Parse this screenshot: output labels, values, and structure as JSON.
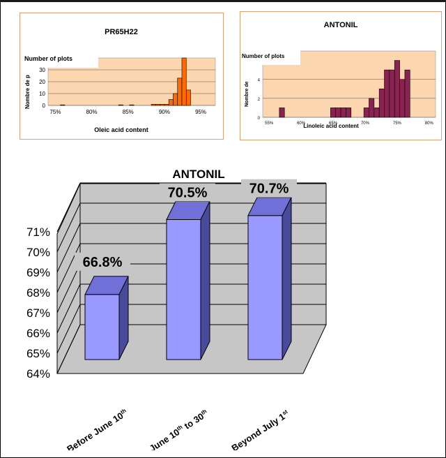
{
  "chart_data": [
    {
      "type": "bar",
      "title": "PR65H22",
      "xlabel": "Oleic acid content",
      "ylabel": "Nombre de p",
      "overlay_label": "Number of plots",
      "x_ticks": [
        "75%",
        "80%",
        "85%",
        "90%",
        "95%"
      ],
      "y_ticks": [
        "0",
        "10",
        "20",
        "30"
      ],
      "xlim": [
        74,
        97
      ],
      "ylim": [
        0,
        40
      ],
      "bar_width": 0.6,
      "bars": [
        {
          "x": 76.0,
          "y": 0.5
        },
        {
          "x": 84.0,
          "y": 0.5
        },
        {
          "x": 85.5,
          "y": 0.5
        },
        {
          "x": 88.5,
          "y": 1
        },
        {
          "x": 89.1,
          "y": 1
        },
        {
          "x": 89.7,
          "y": 1
        },
        {
          "x": 90.3,
          "y": 1
        },
        {
          "x": 90.9,
          "y": 5
        },
        {
          "x": 91.5,
          "y": 10
        },
        {
          "x": 92.1,
          "y": 23
        },
        {
          "x": 92.7,
          "y": 40
        },
        {
          "x": 93.3,
          "y": 13
        }
      ],
      "bar_color": "#ff6a00",
      "plot_bg": "#fcd6ae"
    },
    {
      "type": "bar",
      "title": "ANTONIL",
      "xlabel": "Linoleic acid content",
      "ylabel": "Nombre de",
      "overlay_label": "Number of plots",
      "x_ticks": [
        "55%",
        "60%",
        "65%",
        "70%",
        "75%",
        "80%"
      ],
      "y_ticks": [
        "0",
        "2",
        "4"
      ],
      "xlim": [
        54,
        81
      ],
      "ylim": [
        0,
        7
      ],
      "bar_width": 0.8,
      "bars": [
        {
          "x": 57.0,
          "y": 1
        },
        {
          "x": 65.0,
          "y": 1
        },
        {
          "x": 65.8,
          "y": 1
        },
        {
          "x": 66.6,
          "y": 1
        },
        {
          "x": 67.4,
          "y": 1
        },
        {
          "x": 70.2,
          "y": 1
        },
        {
          "x": 71.0,
          "y": 2
        },
        {
          "x": 71.8,
          "y": 1
        },
        {
          "x": 72.6,
          "y": 3
        },
        {
          "x": 73.4,
          "y": 5
        },
        {
          "x": 74.2,
          "y": 5
        },
        {
          "x": 75.0,
          "y": 6
        },
        {
          "x": 75.8,
          "y": 4
        },
        {
          "x": 76.6,
          "y": 5
        }
      ],
      "bar_color": "#8b2252",
      "plot_bg": "#fcd6ae"
    },
    {
      "type": "bar",
      "title": "ANTONIL",
      "categories": [
        "Before June 10th",
        "June 10th to 30th",
        "Beyond July 1st"
      ],
      "category_parts": [
        {
          "pre": "Before June 10",
          "sup": "th",
          "post": ""
        },
        {
          "pre": "June 10",
          "sup": "th",
          "post": " to 30",
          "sup2": "th"
        },
        {
          "pre": "Beyond July 1",
          "sup": "st",
          "post": ""
        }
      ],
      "values": [
        66.8,
        70.5,
        70.7
      ],
      "data_labels": [
        "66.8%",
        "70.5%",
        "70.7%"
      ],
      "y_ticks": [
        "64%",
        "65%",
        "66%",
        "67%",
        "68%",
        "69%",
        "70%",
        "71%"
      ],
      "ylim": [
        64,
        71
      ],
      "bar_color": "#9999ff",
      "grid": true,
      "three_d": true
    }
  ]
}
